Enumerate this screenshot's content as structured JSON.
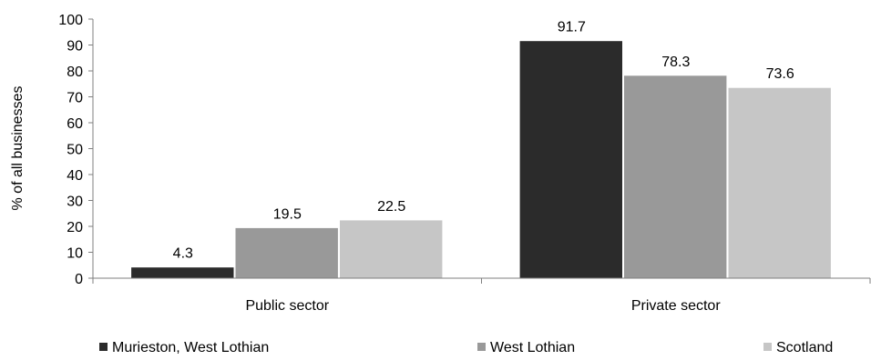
{
  "chart_data": {
    "type": "bar",
    "title": "",
    "xlabel": "",
    "ylabel": "% of all businesses",
    "ylim": [
      0,
      100
    ],
    "yticks": [
      0,
      10,
      20,
      30,
      40,
      50,
      60,
      70,
      80,
      90,
      100
    ],
    "grid": false,
    "legend_position": "bottom",
    "categories": [
      "Public sector",
      "Private sector"
    ],
    "series": [
      {
        "name": "Murieston, West Lothian",
        "color": "#2b2b2b",
        "values": [
          4.3,
          91.7
        ]
      },
      {
        "name": "West Lothian",
        "color": "#999999",
        "values": [
          19.5,
          78.3
        ]
      },
      {
        "name": "Scotland",
        "color": "#c6c6c6",
        "values": [
          22.5,
          73.6
        ]
      }
    ]
  }
}
